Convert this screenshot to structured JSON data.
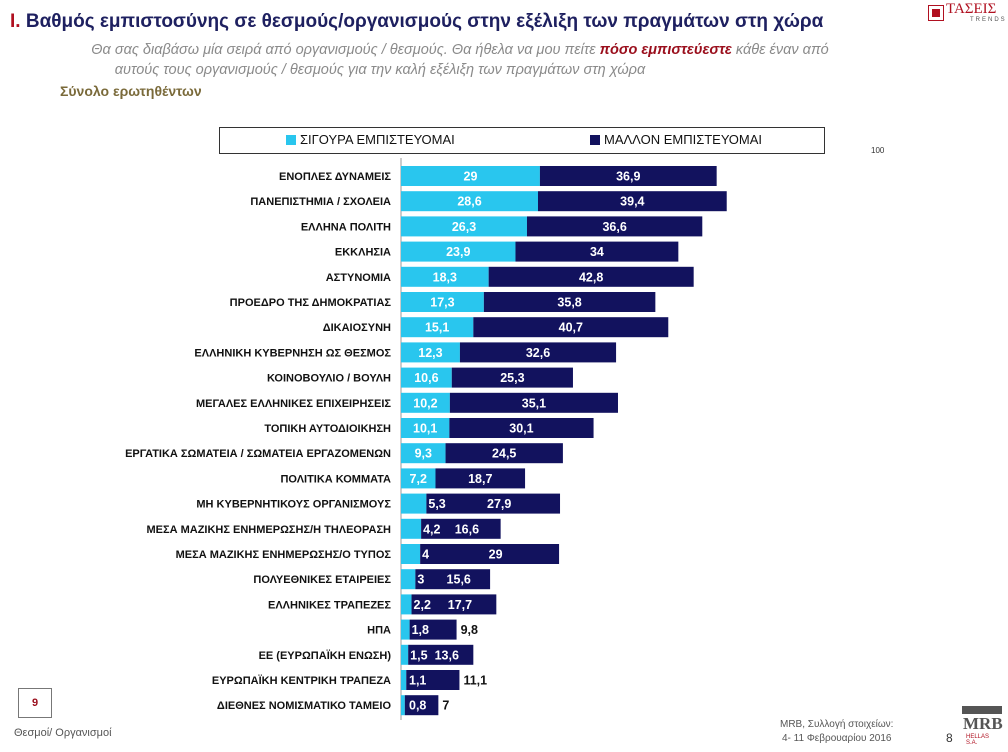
{
  "header": {
    "title_prefix": "I.",
    "title_text": "Βαθμός εμπιστοσύνης σε θεσμούς/οργανισμούς στην εξέλιξη των πραγμάτων στη χώρα",
    "subtitle_part1": "Θα σας διαβάσω μία σειρά από οργανισμούς / θεσμούς. Θα ήθελα να μου πείτε ",
    "subtitle_emphasis": "πόσο εμπιστεύεστε",
    "subtitle_part2": " κάθε έναν από",
    "subtitle_line2": "αυτούς τους οργανισμούς / θεσμούς για την καλή εξέλιξη των πραγμάτων στη χώρα",
    "base": "Σύνολο ερωτηθέντων"
  },
  "logo": {
    "name": "ΤΑΣΕΙΣ",
    "sub": "TRENDS"
  },
  "legend": {
    "item1": "ΣΙΓΟΥΡΑ ΕΜΠΙΣΤΕΥΟΜΑΙ",
    "item2": "ΜΑΛΛΟΝ ΕΜΠΙΣΤΕΥΟΜΑΙ"
  },
  "colors": {
    "series1": "#29c6ee",
    "series2": "#12125e"
  },
  "chart_data": {
    "type": "bar",
    "orientation": "horizontal",
    "stacked": true,
    "title": "Βαθμός εμπιστοσύνης σε θεσμούς/οργανισμούς στην εξέλιξη των πραγμάτων στη χώρα",
    "xlim": [
      0,
      100
    ],
    "axis_max_label": "100",
    "categories": [
      "ΕΝΟΠΛΕΣ ΔΥΝΑΜΕΙΣ",
      "ΠΑΝΕΠΙΣΤΗΜΙΑ / ΣΧΟΛΕΙΑ",
      "ΕΛΛΗΝΑ ΠΟΛΙΤΗ",
      "ΕΚΚΛΗΣΙΑ",
      "ΑΣΤΥΝΟΜΙΑ",
      "ΠΡΟΕΔΡΟ ΤΗΣ ΔΗΜΟΚΡΑΤΙΑΣ",
      "ΔΙΚΑΙΟΣΥΝΗ",
      "ΕΛΛΗΝΙΚΗ ΚΥΒΕΡΝΗΣΗ ΩΣ ΘΕΣΜΟΣ",
      "ΚΟΙΝΟΒΟΥΛΙΟ / ΒΟΥΛΗ",
      "ΜΕΓΑΛΕΣ ΕΛΛΗΝΙΚΕΣ ΕΠΙΧΕΙΡΗΣΕΙΣ",
      "ΤΟΠΙΚΗ ΑΥΤΟΔΙΟΙΚΗΣΗ",
      "ΕΡΓΑΤΙΚΑ ΣΩΜΑΤΕΙΑ / ΣΩΜΑΤΕΙΑ ΕΡΓΑΖΟΜΕΝΩΝ",
      "ΠΟΛΙΤΙΚΑ ΚΟΜΜΑΤΑ",
      "ΜΗ ΚΥΒΕΡΝΗΤΙΚΟΥΣ ΟΡΓΑΝΙΣΜΟΥΣ",
      "ΜΕΣΑ ΜΑΖΙΚΗΣ ΕΝΗΜΕΡΩΣΗΣ/Η ΤΗΛΕΟΡΑΣΗ",
      "ΜΕΣΑ ΜΑΖΙΚΗΣ ΕΝΗΜΕΡΩΣΗΣ/Ο ΤΥΠΟΣ",
      "ΠΟΛΥΕΘΝΙΚΕΣ ΕΤΑΙΡΕΙΕΣ",
      "ΕΛΛΗΝΙΚΕΣ ΤΡΑΠΕΖΕΣ",
      "ΗΠΑ",
      "ΕΕ (ΕΥΡΩΠΑΪΚΗ ΕΝΩΣΗ)",
      "ΕΥΡΩΠΑΪΚΗ ΚΕΝΤΡΙΚΗ ΤΡΑΠΕΖΑ",
      "ΔΙΕΘΝΕΣ ΝΟΜΙΣΜΑΤΙΚΟ ΤΑΜΕΙΟ"
    ],
    "series": [
      {
        "name": "ΣΙΓΟΥΡΑ ΕΜΠΙΣΤΕΥΟΜΑΙ",
        "values": [
          29,
          28.6,
          26.3,
          23.9,
          18.3,
          17.3,
          15.1,
          12.3,
          10.6,
          10.2,
          10.1,
          9.3,
          7.2,
          5.3,
          4.2,
          4,
          3,
          2.2,
          1.8,
          1.5,
          1.1,
          0.8
        ],
        "labels": [
          "29",
          "28,6",
          "26,3",
          "23,9",
          "18,3",
          "17,3",
          "15,1",
          "12,3",
          "10,6",
          "10,2",
          "10,1",
          "9,3",
          "7,2",
          "5,3",
          "4,2",
          "4",
          "3",
          "2,2",
          "1,8",
          "1,5",
          "1,1",
          "0,8"
        ]
      },
      {
        "name": "ΜΑΛΛΟΝ ΕΜΠΙΣΤΕΥΟΜΑΙ",
        "values": [
          36.9,
          39.4,
          36.6,
          34,
          42.8,
          35.8,
          40.7,
          32.6,
          25.3,
          35.1,
          30.1,
          24.5,
          18.7,
          27.9,
          16.6,
          29,
          15.6,
          17.7,
          9.8,
          13.6,
          11.1,
          7
        ],
        "labels": [
          "36,9",
          "39,4",
          "36,6",
          "34",
          "42,8",
          "35,8",
          "40,7",
          "32,6",
          "25,3",
          "35,1",
          "30,1",
          "24,5",
          "18,7",
          "27,9",
          "16,6",
          "29",
          "15,6",
          "17,7",
          "9,8",
          "13,6",
          "11,1",
          "7"
        ]
      }
    ]
  },
  "footer": {
    "page_box": "9",
    "left": "Θεσμοί/ Οργανισμοί",
    "source_line1": "MRB, Συλλογή στοιχείων:",
    "source_line2": "4- 11 Φεβρουαρίου 2016",
    "page_number": "8",
    "mrb_name": "MRB",
    "mrb_sub": "HELLAS S.A."
  }
}
